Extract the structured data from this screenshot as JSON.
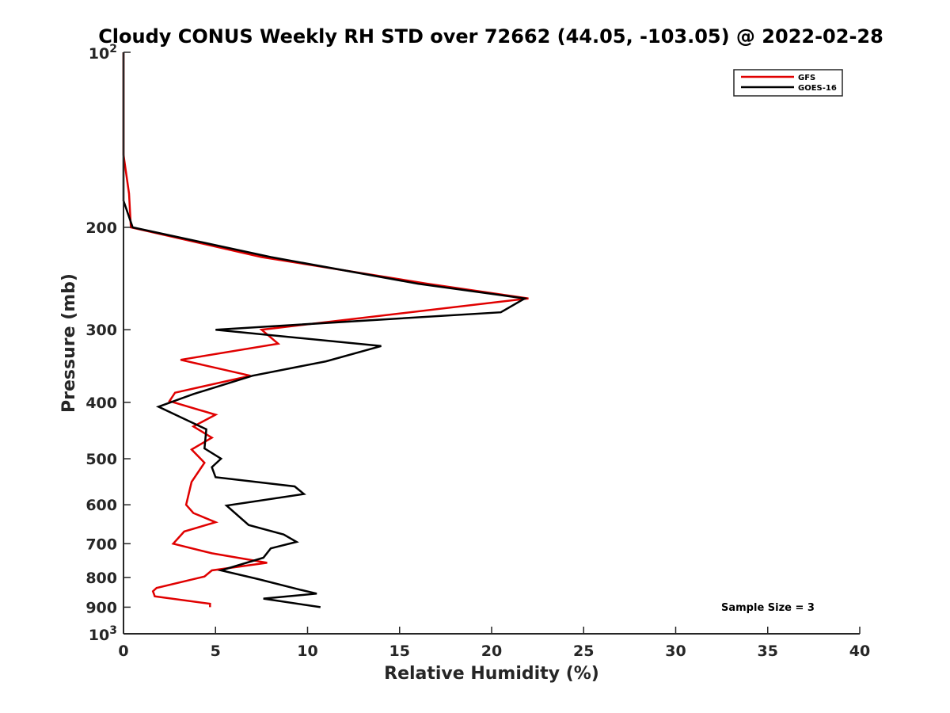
{
  "chart_data": {
    "type": "line",
    "title": "Cloudy CONUS Weekly RH STD over 72662 (44.05, -103.05) @ 2022-02-28",
    "xlabel": "Relative Humidity (%)",
    "ylabel": "Pressure (mb)",
    "xlim": [
      0,
      40
    ],
    "ylim": [
      100,
      1000
    ],
    "y_scale": "log",
    "y_reversed": true,
    "x_ticks": [
      "0",
      "5",
      "10",
      "15",
      "20",
      "25",
      "30",
      "35",
      "40"
    ],
    "y_ticks": [
      {
        "value": 100,
        "base": "10",
        "exp": "2"
      },
      {
        "value": 200,
        "label": "200"
      },
      {
        "value": 300,
        "label": "300"
      },
      {
        "value": 400,
        "label": "400"
      },
      {
        "value": 500,
        "label": "500"
      },
      {
        "value": 600,
        "label": "600"
      },
      {
        "value": 700,
        "label": "700"
      },
      {
        "value": 800,
        "label": "800"
      },
      {
        "value": 900,
        "label": "900"
      },
      {
        "value": 1000,
        "base": "10",
        "exp": "3"
      }
    ],
    "grid": false,
    "legend_position": "top-right",
    "annotation": "Sample Size = 3",
    "series": [
      {
        "name": "GFS",
        "color": "#e00000",
        "points": [
          [
            0,
            100
          ],
          [
            0,
            150
          ],
          [
            0.3,
            175
          ],
          [
            0.4,
            200
          ],
          [
            7.5,
            225
          ],
          [
            16.5,
            250
          ],
          [
            22,
            265
          ],
          [
            7.5,
            300
          ],
          [
            8.4,
            317
          ],
          [
            3.1,
            338
          ],
          [
            6.9,
            360
          ],
          [
            2.8,
            385
          ],
          [
            2.5,
            398
          ],
          [
            5.0,
            420
          ],
          [
            3.8,
            440
          ],
          [
            4.8,
            460
          ],
          [
            3.7,
            482
          ],
          [
            4.4,
            508
          ],
          [
            3.7,
            548
          ],
          [
            3.4,
            600
          ],
          [
            3.8,
            620
          ],
          [
            5.0,
            643
          ],
          [
            3.3,
            667
          ],
          [
            2.7,
            700
          ],
          [
            4.8,
            727
          ],
          [
            7.8,
            755
          ],
          [
            4.8,
            778
          ],
          [
            4.4,
            797
          ],
          [
            1.8,
            834
          ],
          [
            1.6,
            845
          ],
          [
            1.7,
            862
          ],
          [
            4.7,
            888
          ],
          [
            4.7,
            900
          ]
        ]
      },
      {
        "name": "GOES-16",
        "color": "#000000",
        "points": [
          [
            0,
            100
          ],
          [
            0,
            180
          ],
          [
            0.5,
            200
          ],
          [
            8.0,
            225
          ],
          [
            16.0,
            250
          ],
          [
            21.8,
            265
          ],
          [
            20.5,
            280
          ],
          [
            5.0,
            300
          ],
          [
            14.0,
            320
          ],
          [
            11.0,
            340
          ],
          [
            7.0,
            360
          ],
          [
            3.8,
            387
          ],
          [
            1.9,
            407
          ],
          [
            3.3,
            427
          ],
          [
            4.5,
            445
          ],
          [
            4.4,
            480
          ],
          [
            5.3,
            500
          ],
          [
            4.8,
            517
          ],
          [
            5.0,
            538
          ],
          [
            9.3,
            558
          ],
          [
            9.8,
            575
          ],
          [
            5.6,
            602
          ],
          [
            6.8,
            650
          ],
          [
            8.7,
            675
          ],
          [
            9.4,
            695
          ],
          [
            8.0,
            713
          ],
          [
            7.6,
            740
          ],
          [
            5.3,
            778
          ],
          [
            7.3,
            805
          ],
          [
            9.6,
            840
          ],
          [
            10.5,
            853
          ],
          [
            7.6,
            870
          ],
          [
            10.7,
            900
          ]
        ]
      }
    ]
  }
}
